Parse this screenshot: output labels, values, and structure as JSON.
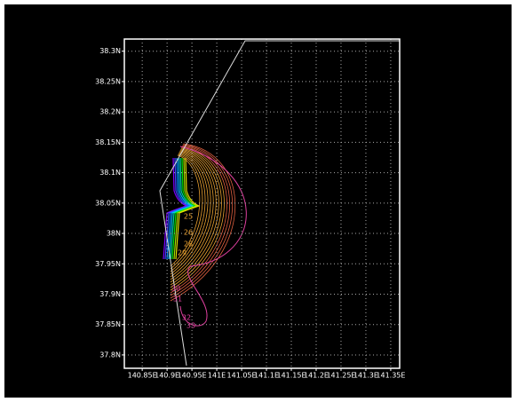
{
  "chart_data": {
    "type": "contour",
    "xlim": [
      140.814,
      141.368
    ],
    "ylim": [
      37.778,
      38.32
    ],
    "xticks": [
      {
        "value": 140.85,
        "label": "140.85E"
      },
      {
        "value": 140.9,
        "label": "140.9E"
      },
      {
        "value": 140.95,
        "label": "140.95E"
      },
      {
        "value": 141,
        "label": "141E"
      },
      {
        "value": 141.05,
        "label": "141.05E"
      },
      {
        "value": 141.1,
        "label": "141.1E"
      },
      {
        "value": 141.15,
        "label": "141.15E"
      },
      {
        "value": 141.2,
        "label": "141.2E"
      },
      {
        "value": 141.25,
        "label": "141.25E"
      },
      {
        "value": 141.3,
        "label": "141.3E"
      },
      {
        "value": 141.35,
        "label": "141.35E"
      }
    ],
    "yticks": [
      {
        "value": 37.8,
        "label": "37.8N"
      },
      {
        "value": 37.85,
        "label": "37.85N"
      },
      {
        "value": 37.9,
        "label": "37.9N"
      },
      {
        "value": 37.95,
        "label": "37.95N"
      },
      {
        "value": 38,
        "label": "38N"
      },
      {
        "value": 38.05,
        "label": "38.05N"
      },
      {
        "value": 38.1,
        "label": "38.1N"
      },
      {
        "value": 38.15,
        "label": "38.15N"
      },
      {
        "value": 38.2,
        "label": "38.2N"
      },
      {
        "value": 38.25,
        "label": "38.25N"
      },
      {
        "value": 38.3,
        "label": "38.3N"
      }
    ],
    "grid": true,
    "contour_labels": [
      25,
      26,
      28,
      29,
      30,
      31,
      32,
      33
    ]
  }
}
